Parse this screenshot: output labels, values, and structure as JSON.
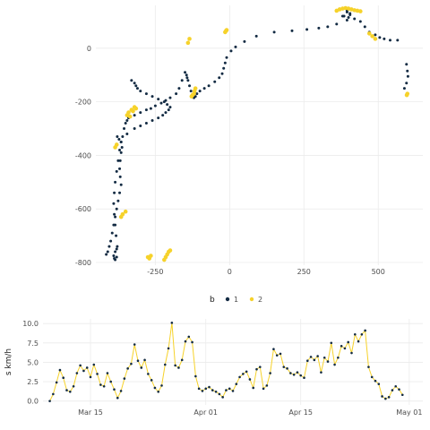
{
  "chart_data": [
    {
      "type": "scatter",
      "title": "",
      "xlabel": "",
      "ylabel": "",
      "xlim": [
        -450,
        650
      ],
      "ylim": [
        -810,
        160
      ],
      "x_ticks": [
        -250,
        0,
        250,
        500
      ],
      "x_tick_labels": [
        "-250",
        "0",
        "250",
        "500"
      ],
      "y_ticks": [
        0,
        -200,
        -400,
        -600,
        -800
      ],
      "y_tick_labels": [
        "0",
        "-200",
        "-400",
        "-600",
        "-800"
      ],
      "grid": true,
      "legend": {
        "title": "b",
        "placement": "bottom",
        "entries": [
          {
            "label": "1",
            "color": "#132b43"
          },
          {
            "label": "2",
            "color": "#f6d22a"
          }
        ]
      },
      "series": [
        {
          "name": "1",
          "color": "#132b43",
          "x": [
            595,
            598,
            600,
            595,
            588,
            565,
            540,
            520,
            505,
            490,
            470,
            455,
            440,
            420,
            405,
            395,
            385,
            395,
            400,
            405,
            395,
            380,
            360,
            330,
            300,
            260,
            210,
            150,
            90,
            50,
            20,
            5,
            -10,
            -15,
            -20,
            -25,
            -35,
            -50,
            -70,
            -85,
            -100,
            -110,
            -115,
            -120,
            -125,
            -130,
            -135,
            -140,
            -143,
            -145,
            -150,
            -160,
            -170,
            -180,
            -200,
            -215,
            -230,
            -250,
            -265,
            -280,
            -300,
            -320,
            -340,
            -345,
            -350,
            -355,
            -360,
            -365,
            -362,
            -365,
            -368,
            -370,
            -368,
            -365,
            -370,
            -375,
            -380,
            -385,
            -390,
            -395,
            -400,
            -405,
            -410,
            -415,
            -380,
            -385,
            -388,
            -390,
            -385,
            -380,
            -378,
            -382,
            -385,
            -388,
            -390,
            -388,
            -385,
            -380,
            -375,
            -370,
            -365,
            -372,
            -378,
            -345,
            -320,
            -300,
            -280,
            -260,
            -240,
            -225,
            -215,
            -205,
            -200,
            -210,
            -220,
            -240,
            -260,
            -280,
            -300,
            -310,
            -315,
            -320,
            -330
          ],
          "y": [
            -60,
            -85,
            -105,
            -130,
            -150,
            30,
            30,
            35,
            40,
            50,
            60,
            80,
            100,
            110,
            125,
            135,
            120,
            105,
            115,
            130,
            140,
            120,
            90,
            80,
            75,
            70,
            65,
            60,
            45,
            25,
            5,
            -10,
            -35,
            -55,
            -75,
            -95,
            -110,
            -125,
            -140,
            -150,
            -160,
            -170,
            -180,
            -185,
            -175,
            -160,
            -140,
            -120,
            -110,
            -100,
            -90,
            -120,
            -150,
            -170,
            -185,
            -195,
            -205,
            -215,
            -225,
            -230,
            -240,
            -250,
            -260,
            -270,
            -280,
            -300,
            -330,
            -350,
            -370,
            -390,
            -420,
            -450,
            -480,
            -510,
            -540,
            -570,
            -600,
            -630,
            -660,
            -690,
            -720,
            -740,
            -760,
            -770,
            -780,
            -790,
            -785,
            -775,
            -760,
            -750,
            -740,
            -700,
            -660,
            -620,
            -580,
            -540,
            -500,
            -460,
            -420,
            -380,
            -350,
            -340,
            -330,
            -320,
            -300,
            -290,
            -280,
            -270,
            -260,
            -250,
            -240,
            -230,
            -220,
            -210,
            -200,
            -190,
            -180,
            -170,
            -160,
            -150,
            -140,
            -130,
            -120
          ],
          "note_on_units": ""
        },
        {
          "name": "2",
          "color": "#f6d22a",
          "x": [
            598,
            596,
            470,
            480,
            490,
            430,
            440,
            420,
            410,
            400,
            390,
            380,
            370,
            360,
            -15,
            -12,
            -10,
            -115,
            -118,
            -120,
            -125,
            -128,
            -135,
            -140,
            -320,
            -315,
            -330,
            -340,
            -345,
            -335,
            -325,
            -350,
            -360,
            -365,
            -380,
            -385,
            -275,
            -270,
            -265,
            -205,
            -210,
            -215,
            -220,
            -200
          ],
          "y": [
            -170,
            -175,
            55,
            45,
            35,
            140,
            138,
            142,
            145,
            148,
            150,
            148,
            145,
            140,
            60,
            65,
            68,
            -150,
            -160,
            -170,
            -175,
            -180,
            35,
            20,
            -220,
            -225,
            -230,
            -240,
            -250,
            -255,
            -235,
            -610,
            -620,
            -630,
            -360,
            -370,
            -780,
            -785,
            -775,
            -760,
            -770,
            -780,
            -790,
            -755
          ]
        }
      ]
    },
    {
      "type": "line",
      "title": "",
      "xlabel": "",
      "ylabel": "s km/h",
      "xlim": [
        "2019-03-08",
        "2019-05-03"
      ],
      "ylim": [
        -0.5,
        10.6
      ],
      "x_ticks": [
        "2019-03-15",
        "2019-04-01",
        "2019-04-15",
        "2019-05-01"
      ],
      "x_tick_labels": [
        "Mar 15",
        "Apr 01",
        "Apr 15",
        "May 01"
      ],
      "y_ticks": [
        0.0,
        2.5,
        5.0,
        7.5,
        10.0
      ],
      "y_tick_labels": [
        "0.0",
        "2.5",
        "5.0",
        "7.5",
        "10.0"
      ],
      "grid": true,
      "line_color": "#f6d22a",
      "series": [
        {
          "name": "1",
          "color": "#132b43",
          "x": [
            "2019-03-09",
            "2019-03-09T12:00",
            "2019-03-10",
            "2019-03-10T12:00",
            "2019-03-11",
            "2019-03-11T12:00",
            "2019-03-12",
            "2019-03-12T12:00",
            "2019-03-13",
            "2019-03-13T12:00",
            "2019-03-14",
            "2019-03-14T12:00",
            "2019-03-15",
            "2019-03-15T12:00",
            "2019-03-16",
            "2019-03-16T12:00",
            "2019-03-17",
            "2019-03-17T12:00",
            "2019-03-18",
            "2019-03-18T12:00",
            "2019-03-19",
            "2019-03-19T12:00",
            "2019-03-20",
            "2019-03-20T12:00",
            "2019-03-21",
            "2019-03-21T12:00",
            "2019-03-22",
            "2019-03-22T12:00",
            "2019-03-23",
            "2019-03-23T12:00",
            "2019-03-24",
            "2019-03-24T12:00",
            "2019-03-25",
            "2019-03-25T12:00",
            "2019-03-26",
            "2019-03-26T12:00",
            "2019-03-27",
            "2019-03-27T12:00",
            "2019-03-28",
            "2019-03-28T12:00",
            "2019-03-29",
            "2019-03-29T12:00",
            "2019-03-30",
            "2019-03-30T12:00",
            "2019-03-31",
            "2019-03-31T12:00",
            "2019-04-01",
            "2019-04-01T12:00",
            "2019-04-02",
            "2019-04-02T12:00",
            "2019-04-03",
            "2019-04-03T12:00",
            "2019-04-04",
            "2019-04-04T12:00",
            "2019-04-05",
            "2019-04-05T12:00",
            "2019-04-06",
            "2019-04-06T12:00",
            "2019-04-07",
            "2019-04-07T12:00",
            "2019-04-08",
            "2019-04-08T12:00",
            "2019-04-09",
            "2019-04-09T12:00",
            "2019-04-10",
            "2019-04-10T12:00",
            "2019-04-11",
            "2019-04-11T12:00",
            "2019-04-12",
            "2019-04-12T12:00",
            "2019-04-13",
            "2019-04-13T12:00",
            "2019-04-14",
            "2019-04-14T12:00",
            "2019-04-15",
            "2019-04-15T12:00",
            "2019-04-16",
            "2019-04-16T12:00",
            "2019-04-17",
            "2019-04-17T12:00",
            "2019-04-18",
            "2019-04-18T12:00",
            "2019-04-19",
            "2019-04-19T12:00",
            "2019-04-20",
            "2019-04-20T12:00",
            "2019-04-21",
            "2019-04-21T12:00",
            "2019-04-22",
            "2019-04-22T12:00",
            "2019-04-23",
            "2019-04-23T12:00",
            "2019-04-24",
            "2019-04-24T12:00",
            "2019-04-25",
            "2019-04-25T12:00",
            "2019-04-26",
            "2019-04-26T12:00",
            "2019-04-27",
            "2019-04-27T12:00",
            "2019-04-28",
            "2019-04-28T12:00",
            "2019-04-29",
            "2019-04-29T12:00",
            "2019-04-30"
          ],
          "y": [
            0,
            0.9,
            2.4,
            4.0,
            3.0,
            1.4,
            1.2,
            1.9,
            3.6,
            4.6,
            3.9,
            4.3,
            3.1,
            4.7,
            3.5,
            2.1,
            1.9,
            3.6,
            2.5,
            1.5,
            0.4,
            1.3,
            2.9,
            4.2,
            4.8,
            7.3,
            5.2,
            4.3,
            5.3,
            3.5,
            2.7,
            1.7,
            1.2,
            2.0,
            4.7,
            6.8,
            10.1,
            4.6,
            4.3,
            5.3,
            7.7,
            8.3,
            7.6,
            3.2,
            1.6,
            1.3,
            1.6,
            1.8,
            1.4,
            1.2,
            0.9,
            0.5,
            1.4,
            1.6,
            1.3,
            2.2,
            3.1,
            3.5,
            3.8,
            2.8,
            1.7,
            4.1,
            4.4,
            1.6,
            2.0,
            3.6,
            6.7,
            5.9,
            6.1,
            4.4,
            4.2,
            3.6,
            3.4,
            3.7,
            3.3,
            3.0,
            5.2,
            5.7,
            5.3,
            5.8,
            3.7,
            5.6,
            5.1,
            7.5,
            4.7,
            5.6,
            7.1,
            6.8,
            7.6,
            6.2,
            8.6,
            7.7,
            8.6,
            9.1,
            4.4,
            3.1,
            2.6,
            2.2,
            0.6,
            0.3,
            0.5,
            1.4,
            1.9,
            1.5,
            0.8
          ]
        }
      ]
    }
  ]
}
